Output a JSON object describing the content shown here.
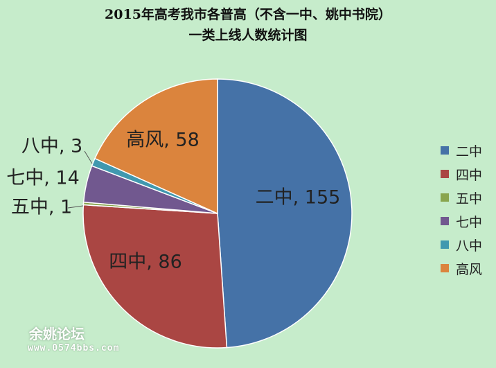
{
  "chart_data": {
    "type": "pie",
    "title": [
      "2015年高考我市各普高（不含一中、姚中书院）",
      "一类上线人数统计图"
    ],
    "categories": [
      "二中",
      "四中",
      "五中",
      "七中",
      "八中",
      "高风"
    ],
    "values": [
      155,
      86,
      1,
      14,
      3,
      58
    ],
    "colors": [
      "#4572a7",
      "#aa4643",
      "#89a54e",
      "#71588f",
      "#4198af",
      "#db843d"
    ],
    "data_labels": [
      "二中, 155",
      "四中, 86",
      "五中, 1",
      "七中, 14",
      "八中, 3",
      "高风, 58"
    ],
    "legend": "right",
    "start_angle": "12 o'clock, clockwise"
  },
  "watermark": {
    "name": "余姚论坛",
    "url": "www.0574bbs.com"
  }
}
